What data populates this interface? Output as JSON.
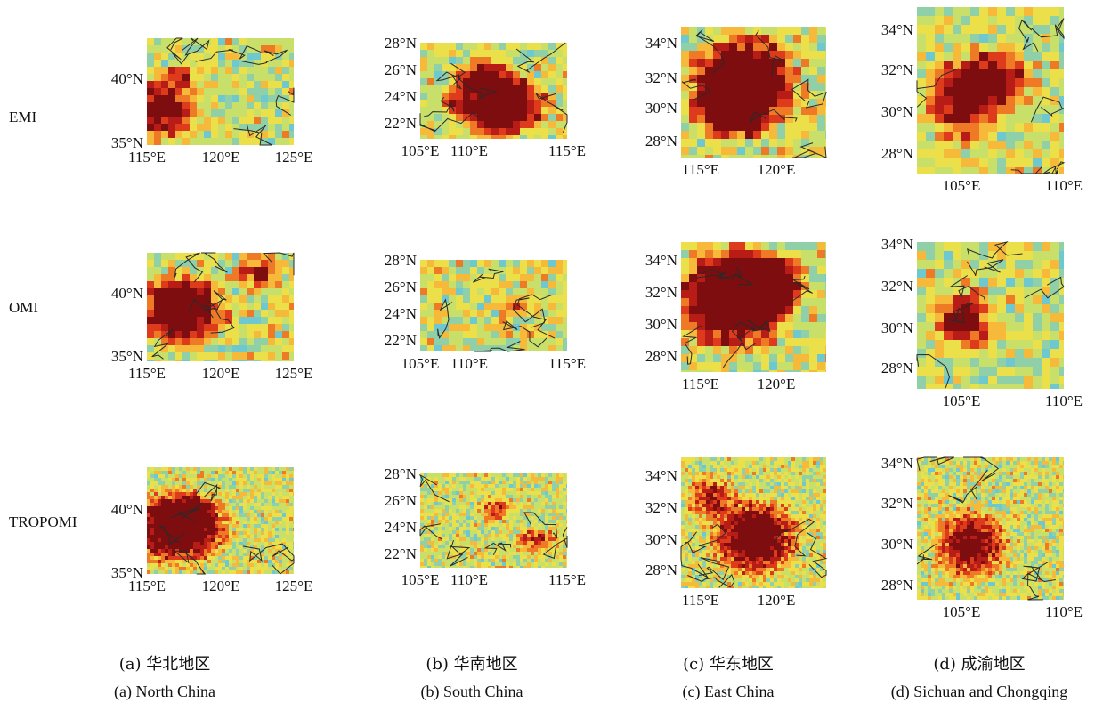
{
  "rows": [
    {
      "label": "EMI"
    },
    {
      "label": "OMI"
    },
    {
      "label": "TROPOMI"
    }
  ],
  "colors": {
    "background": "#6ec8cf",
    "palette": [
      "#6ec8cf",
      "#8fd0a8",
      "#c8df6a",
      "#ece04a",
      "#f6b93a",
      "#ef7a26",
      "#de3a1c",
      "#b81c16",
      "#7d0d0e"
    ],
    "boundary": "#2a2a2a",
    "missing": "#e8ecee"
  },
  "regions": [
    {
      "name": "North China",
      "caption_zh": "(a) 华北地区",
      "caption_en": "(a) North China",
      "lon_ticks": [
        "115°E",
        "120°E",
        "125°E"
      ],
      "lat_ticks": [
        "40°N",
        "35°N"
      ]
    },
    {
      "name": "South China",
      "caption_zh": "(b) 华南地区",
      "caption_en": "(b) South China",
      "lon_ticks": [
        "105°E",
        "110°E",
        "115°E"
      ],
      "lat_ticks": [
        "28°N",
        "26°N",
        "24°N",
        "22°N"
      ]
    },
    {
      "name": "East China",
      "caption_zh": "(c) 华东地区",
      "caption_en": "(c) East China",
      "lon_ticks": [
        "115°E",
        "120°E"
      ],
      "lat_ticks": [
        "34°N",
        "32°N",
        "30°N",
        "28°N"
      ]
    },
    {
      "name": "Sichuan and Chongqing",
      "caption_zh": "(d) 成渝地区",
      "caption_en": "(d) Sichuan and Chongqing",
      "lon_ticks": [
        "105°E",
        "110°E"
      ],
      "lat_ticks": [
        "34°N",
        "32°N",
        "30°N",
        "28°N"
      ]
    }
  ]
}
